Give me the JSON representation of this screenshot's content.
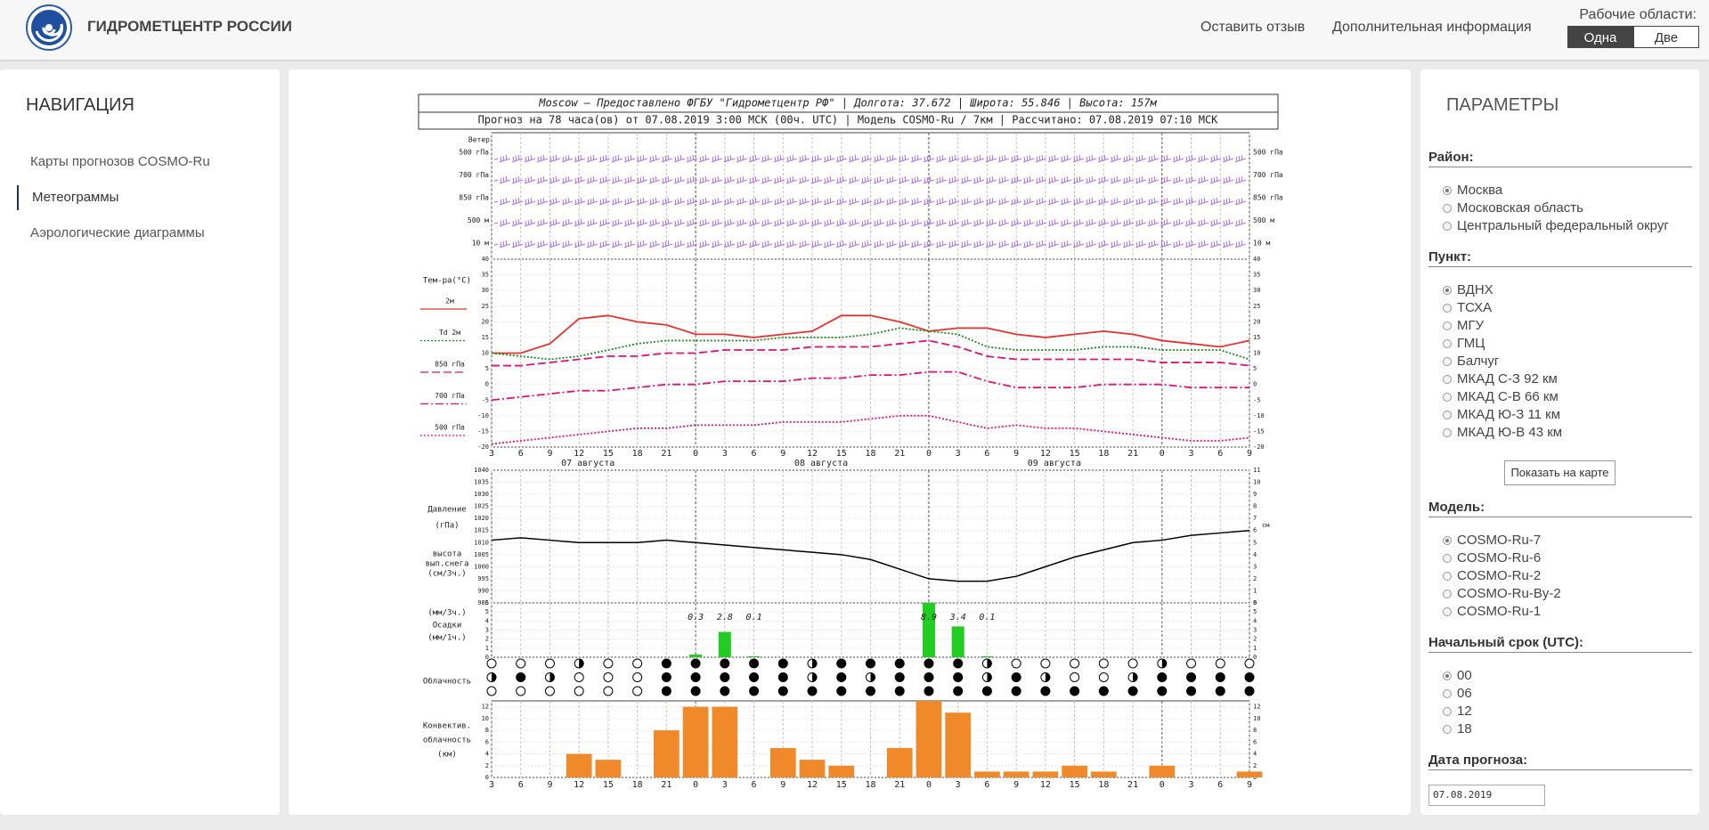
{
  "header": {
    "title": "ГИДРОМЕТЦЕНТР РОССИИ",
    "links": [
      "Оставить отзыв",
      "Дополнительная информация"
    ],
    "workspaces": {
      "label": "Рабочие области:",
      "options": [
        "Одна",
        "Две"
      ],
      "selected": 0
    }
  },
  "nav": {
    "title": "НАВИГАЦИЯ",
    "items": [
      "Карты прогнозов COSMO-Ru",
      "Метеограммы",
      "Аэрологические диаграммы"
    ],
    "active": 1
  },
  "params": {
    "title": "ПАРАМЕТРЫ",
    "sections": [
      {
        "title": "Район:",
        "options": [
          "Москва",
          "Московская область",
          "Центральный федеральный округ"
        ],
        "selected": 0
      },
      {
        "title": "Пункт:",
        "options": [
          "ВДНХ",
          "ТСХА",
          "МГУ",
          "ГМЦ",
          "Балчуг",
          "МКАД С-З 92 км",
          "МКАД С-В 66 км",
          "МКАД Ю-З 11 км",
          "МКАД Ю-В 43 км"
        ],
        "selected": 0,
        "button": "Показать на карте"
      },
      {
        "title": "Модель:",
        "options": [
          "COSMO-Ru-7",
          "COSMO-Ru-6",
          "COSMO-Ru-2",
          "COSMO-Ru-By-2",
          "COSMO-Ru-1"
        ],
        "selected": 0
      },
      {
        "title": "Начальный срок (UTC):",
        "options": [
          "00",
          "06",
          "12",
          "18"
        ],
        "selected": 0
      }
    ],
    "date": {
      "title": "Дата прогноза:",
      "value": "07.08.2019"
    }
  },
  "meteogram": {
    "title": "Moscow — Предоставлено ФГБУ \"Гидрометцентр РФ\" | Долгота: 37.672 | Широта: 55.846 | Высота: 157м",
    "subtitle": "Прогноз на 78 часа(ов) от 07.08.2019 3:00 МСК (00ч. UTC) | Модель COSMO-Ru / 7км | Рассчитано: 07.08.2019 07:10 МСК",
    "hours": [
      "3",
      "6",
      "9",
      "12",
      "15",
      "18",
      "21",
      "0",
      "3",
      "6",
      "9",
      "12",
      "15",
      "18",
      "21",
      "0",
      "3",
      "6",
      "9",
      "12",
      "15",
      "18",
      "21",
      "0",
      "3",
      "6",
      "9"
    ],
    "day_labels": [
      null,
      null,
      null,
      "07 августа",
      null,
      null,
      null,
      null,
      null,
      null,
      null,
      "08 августа",
      null,
      null,
      null,
      null,
      null,
      null,
      null,
      "09 августа",
      null,
      null,
      null,
      null,
      null,
      null,
      null
    ],
    "wind": {
      "label": "Ветер",
      "levels": [
        "500 гПа",
        "700 гПа",
        "850 гПа",
        "500 м",
        "10 м"
      ],
      "color": "#9a4cf0"
    },
    "temperature": {
      "label": "Тем-ра(°C)",
      "ylim": [
        -20,
        40
      ],
      "yticks": [
        -20,
        -15,
        -10,
        -5,
        0,
        5,
        10,
        15,
        20,
        25,
        30,
        35,
        40
      ],
      "series": [
        {
          "name": "2м",
          "color": "#e8302c",
          "dash": "solid",
          "values": [
            10,
            10,
            13,
            21,
            22,
            20,
            19,
            16,
            16,
            15,
            16,
            17,
            22,
            22,
            20,
            17,
            18,
            18,
            16,
            15,
            16,
            17,
            16,
            14,
            13,
            12,
            14
          ]
        },
        {
          "name": "Td 2м",
          "color": "#1a8a1a",
          "dash": "dotted",
          "values": [
            10,
            9,
            8,
            9,
            11,
            13,
            14,
            14,
            14,
            14,
            15,
            15,
            15,
            16,
            18,
            17,
            16,
            12,
            11,
            11,
            11,
            12,
            12,
            11,
            11,
            11,
            8
          ]
        },
        {
          "name": "850 гПа",
          "color": "#e0107a",
          "dash": "longdash",
          "values": [
            6,
            6,
            7,
            8,
            9,
            9,
            10,
            10,
            11,
            11,
            11,
            12,
            12,
            12,
            13,
            14,
            12,
            9,
            8,
            8,
            8,
            8,
            8,
            7,
            7,
            7,
            6
          ]
        },
        {
          "name": "700 гПа",
          "color": "#e0107a",
          "dash": "dashdot",
          "values": [
            -5,
            -4,
            -3,
            -2,
            -2,
            -1,
            0,
            0,
            1,
            1,
            1,
            2,
            2,
            3,
            3,
            4,
            4,
            1,
            -1,
            -1,
            -1,
            0,
            0,
            0,
            -1,
            -1,
            -1
          ]
        },
        {
          "name": "500 гПа",
          "color": "#e0107a",
          "dash": "dotted",
          "values": [
            -19,
            -18,
            -17,
            -16,
            -15,
            -14,
            -14,
            -13,
            -13,
            -13,
            -12,
            -12,
            -12,
            -11,
            -10,
            -10,
            -12,
            -14,
            -13,
            -14,
            -14,
            -15,
            -16,
            -17,
            -18,
            -18,
            -17
          ]
        }
      ]
    },
    "pressure": {
      "label": [
        "Давление",
        "(гПа)"
      ],
      "snow_label": [
        "высота",
        "вып.снега",
        "(см/3ч.)"
      ],
      "ylim": [
        985,
        1040
      ],
      "yticks": [
        985,
        990,
        995,
        1000,
        1005,
        1010,
        1015,
        1020,
        1025,
        1030,
        1035,
        1040
      ],
      "y2lim": [
        0,
        11
      ],
      "y2ticks": [
        0,
        1,
        2,
        3,
        4,
        5,
        6,
        7,
        8,
        9,
        10,
        11
      ],
      "y2_unit": "см",
      "color": "#000000",
      "values": [
        1011,
        1012,
        1011,
        1010,
        1010,
        1010,
        1011,
        1010,
        1009,
        1008,
        1007,
        1006,
        1005,
        1003,
        999,
        995,
        994,
        994,
        996,
        1000,
        1004,
        1007,
        1010,
        1011,
        1013,
        1014,
        1015
      ]
    },
    "precipitation": {
      "label": [
        "(мм/3ч.)",
        "Осадки",
        "(мм/1ч.)"
      ],
      "ylim": [
        0,
        6
      ],
      "yticks": [
        0,
        1,
        2,
        3,
        4,
        5,
        6
      ],
      "color": "#22cc22",
      "values": [
        0,
        0,
        0,
        0,
        0,
        0,
        0,
        0.3,
        2.8,
        0.1,
        0,
        0,
        0,
        0,
        0,
        8.9,
        3.4,
        0.1,
        0,
        0,
        0,
        0,
        0,
        0,
        0,
        0,
        0
      ]
    },
    "clouds": {
      "label": "Облачность",
      "rows": [
        [
          0,
          0,
          0,
          4,
          0,
          0,
          8,
          8,
          8,
          8,
          8,
          4,
          8,
          8,
          8,
          8,
          8,
          4,
          0,
          0,
          0,
          0,
          0,
          4,
          0,
          0,
          0
        ],
        [
          4,
          8,
          4,
          0,
          0,
          0,
          8,
          8,
          8,
          8,
          8,
          4,
          8,
          4,
          8,
          8,
          8,
          4,
          8,
          4,
          0,
          0,
          4,
          8,
          8,
          8,
          8
        ],
        [
          0,
          0,
          0,
          0,
          0,
          0,
          8,
          8,
          8,
          8,
          8,
          8,
          8,
          8,
          8,
          8,
          8,
          8,
          8,
          8,
          8,
          8,
          8,
          8,
          8,
          8,
          8
        ]
      ]
    },
    "convective": {
      "label": [
        "Конвектив.",
        "облачность",
        "(км)"
      ],
      "ylim": [
        0,
        13
      ],
      "yticks": [
        0,
        2,
        4,
        6,
        8,
        10,
        12
      ],
      "color": "#f0892a",
      "values": [
        0,
        0,
        0,
        4,
        3,
        0,
        8,
        12,
        12,
        0,
        5,
        3,
        2,
        0,
        5,
        13,
        11,
        1,
        1,
        1,
        2,
        1,
        0,
        2,
        0,
        0,
        1
      ]
    }
  }
}
